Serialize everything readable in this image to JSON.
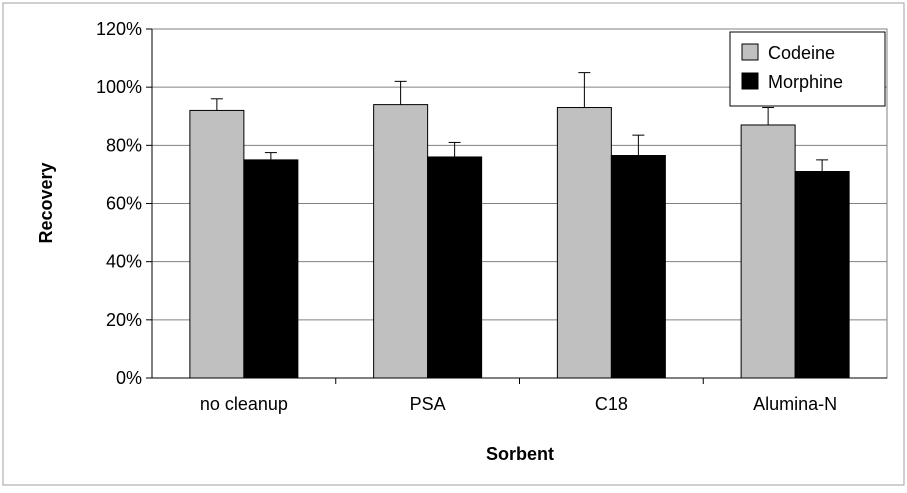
{
  "chart_data": {
    "type": "bar",
    "title": "",
    "xlabel": "Sorbent",
    "ylabel": "Recovery",
    "categories": [
      "no cleanup",
      "PSA",
      "C18",
      "Alumina-N"
    ],
    "series": [
      {
        "name": "Codeine",
        "values": [
          92,
          94,
          93,
          87
        ],
        "errors": [
          4,
          8,
          12,
          6
        ],
        "color": "#c0c0c0"
      },
      {
        "name": "Morphine",
        "values": [
          75,
          76,
          76.5,
          71
        ],
        "errors": [
          2.5,
          5,
          7,
          4
        ],
        "color": "#000000"
      }
    ],
    "ylim": [
      0,
      120
    ],
    "yticks": [
      "0%",
      "20%",
      "40%",
      "60%",
      "80%",
      "100%",
      "120%"
    ],
    "grid": true,
    "legend_position": "top-right"
  }
}
